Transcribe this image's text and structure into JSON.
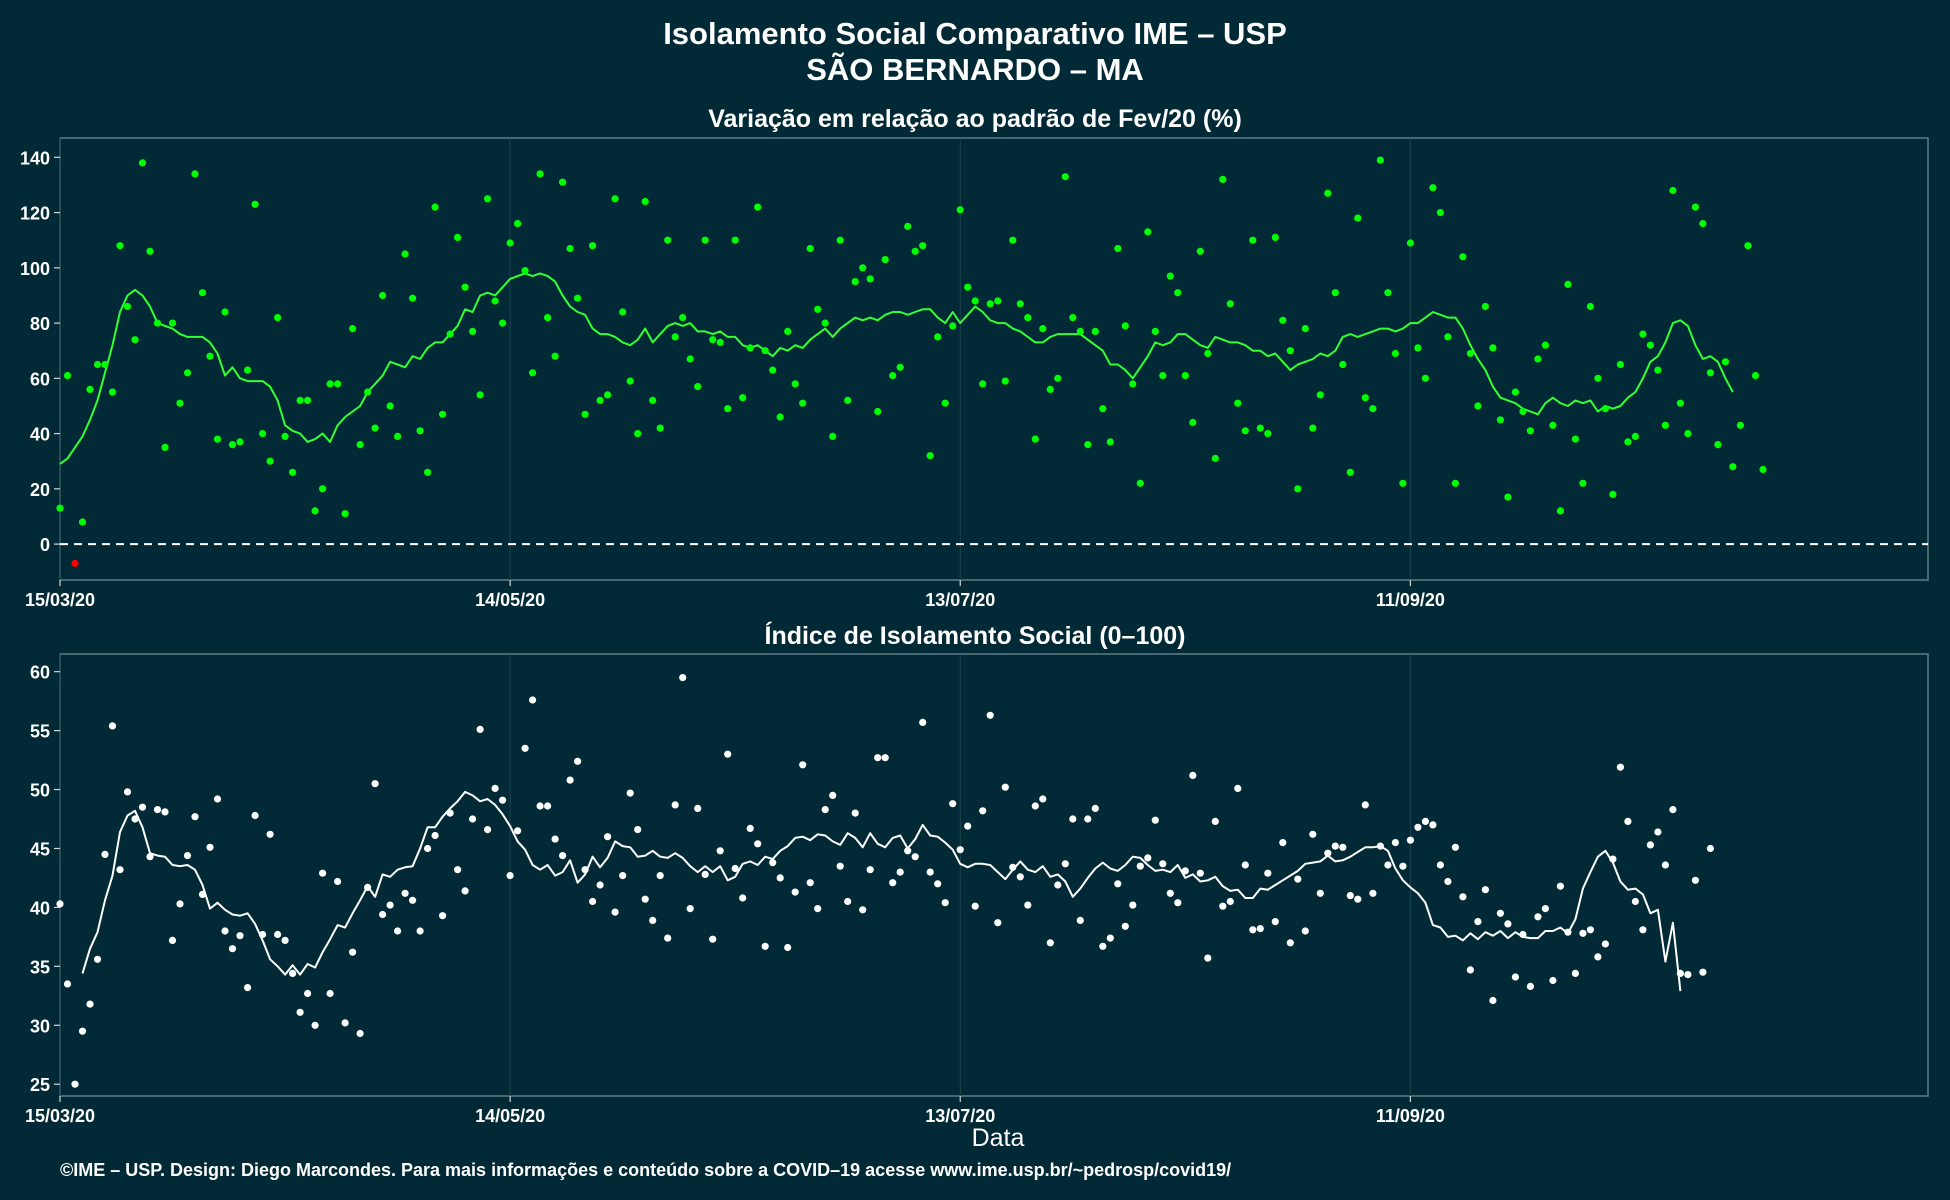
{
  "header": {
    "title_line1": "Isolamento Social Comparativo IME – USP",
    "title_line2": "SÃO BERNARDO – MA"
  },
  "footer": {
    "xlabel": "Data",
    "credit": "©IME – USP. Design: Diego Marcondes. Para mais informações e conteúdo sobre a COVID–19 acesse www.ime.usp.br/~pedrosp/covid19/"
  },
  "colors": {
    "background": "#022a36",
    "panel_border": "#5d7c84",
    "grid": "#1d4550",
    "variation_points": "#00ff00",
    "variation_negative": "#ff0000",
    "index_points": "#ffffff",
    "moving_average_variation": "#33ff33",
    "moving_average_index": "#ffffff",
    "zero_line": "#ffffff"
  },
  "chart_data": [
    {
      "type": "scatter",
      "title": "Variação em relação ao padrão de Fev/20 (%)",
      "x_start": "15/03/20",
      "x_ticks": [
        "15/03/20",
        "14/05/20",
        "13/07/20",
        "11/09/20"
      ],
      "ylim": [
        -13,
        147
      ],
      "yticks": [
        0,
        20,
        40,
        60,
        80,
        100,
        120,
        140
      ],
      "reference_line": 0,
      "grid": true,
      "series": [
        {
          "kind": "points",
          "values": [
            13,
            61,
            -7,
            8,
            56,
            65,
            65,
            55,
            108,
            86,
            74,
            138,
            106,
            80,
            35,
            80,
            51,
            62,
            134,
            91,
            68,
            38,
            84,
            36,
            37,
            63,
            123,
            40,
            30,
            82,
            39,
            26,
            52,
            52,
            12,
            20,
            58,
            58,
            11,
            78,
            36,
            55,
            42,
            90,
            50,
            39,
            105,
            89,
            41,
            26,
            122,
            47,
            76,
            111,
            93,
            77,
            54,
            125,
            88,
            80,
            109,
            116,
            99,
            62,
            134,
            82,
            68,
            131,
            107,
            89,
            47,
            108,
            52,
            54,
            125,
            84,
            59,
            40,
            124,
            52,
            42,
            110,
            75,
            82,
            67,
            57,
            110,
            74,
            73,
            49,
            110,
            53,
            71,
            122,
            70,
            63,
            46,
            77,
            58,
            51,
            107,
            85,
            80,
            39,
            110,
            52,
            95,
            100,
            96,
            48,
            103,
            61,
            64,
            115,
            106,
            108,
            32,
            75,
            51,
            79,
            121,
            93,
            88,
            58,
            87,
            88,
            59,
            110,
            87,
            82,
            38,
            78,
            56,
            60,
            133,
            82,
            77,
            36,
            77,
            49,
            37,
            107,
            79,
            58,
            22,
            113,
            77,
            61,
            97,
            91,
            61,
            44,
            106,
            69,
            31,
            132,
            87,
            51,
            41,
            110,
            42,
            40,
            111,
            81,
            70,
            20,
            78,
            42,
            54,
            127,
            91,
            65,
            26,
            118,
            53,
            49,
            139,
            91,
            69,
            22,
            109,
            71,
            60,
            129,
            120,
            75,
            22,
            104,
            69,
            50,
            86,
            71,
            45,
            17,
            55,
            48,
            41,
            67,
            72,
            43,
            12,
            94,
            38,
            22,
            86,
            60,
            49,
            18,
            65,
            37,
            39,
            76,
            72,
            63,
            43,
            128,
            51,
            40,
            122,
            116,
            62,
            36,
            66,
            28,
            43,
            108,
            61,
            27
          ]
        },
        {
          "kind": "line",
          "name": "",
          "start_index": 0,
          "values": [
            29,
            31,
            35,
            39,
            45,
            52,
            62,
            72,
            84,
            90,
            92,
            90,
            86,
            80,
            79,
            78,
            76,
            75,
            75,
            75,
            73,
            69,
            61,
            64,
            60,
            59,
            59,
            59,
            57,
            52,
            43,
            41,
            40,
            37,
            38,
            40,
            37,
            43,
            46,
            48,
            50,
            55,
            58,
            61,
            66,
            65,
            64,
            68,
            67,
            71,
            73,
            73,
            76,
            79,
            85,
            84,
            90,
            91,
            90,
            93,
            96,
            97,
            98,
            97,
            98,
            97,
            95,
            90,
            86,
            84,
            83,
            78,
            76,
            76,
            75,
            73,
            72,
            74,
            78,
            73,
            76,
            79,
            80,
            79,
            80,
            77,
            77,
            76,
            77,
            75,
            75,
            72,
            71,
            72,
            70,
            68,
            71,
            70,
            72,
            71,
            74,
            76,
            78,
            75,
            78,
            80,
            82,
            81,
            82,
            81,
            83,
            84,
            84,
            83,
            84,
            85,
            85,
            82,
            80,
            84,
            80,
            83,
            86,
            84,
            81,
            80,
            80,
            78,
            77,
            75,
            73,
            73,
            75,
            76,
            76,
            76,
            76,
            74,
            72,
            70,
            65,
            65,
            63,
            60,
            64,
            68,
            73,
            72,
            73,
            76,
            76,
            74,
            72,
            71,
            75,
            74,
            73,
            73,
            72,
            70,
            70,
            68,
            69,
            66,
            63,
            65,
            66,
            67,
            69,
            68,
            70,
            75,
            76,
            75,
            76,
            77,
            78,
            78,
            77,
            78,
            80,
            80,
            82,
            84,
            83,
            82,
            82,
            78,
            72,
            67,
            63,
            57,
            53,
            52,
            51,
            49,
            48,
            47,
            51,
            53,
            51,
            50,
            52,
            51,
            52,
            48,
            50,
            49,
            50,
            53,
            55,
            60,
            66,
            68,
            73,
            80,
            81,
            79,
            72,
            67,
            68,
            66,
            60,
            55
          ]
        },
        {
          "kind": "points_negative",
          "values": [
            -7
          ],
          "indices": [
            2
          ]
        }
      ]
    },
    {
      "type": "scatter",
      "title": "Índice de Isolamento Social (0–100)",
      "x_start": "15/03/20",
      "x_ticks": [
        "15/03/20",
        "14/05/20",
        "13/07/20",
        "11/09/20"
      ],
      "ylim": [
        24,
        61.5
      ],
      "yticks": [
        25,
        30,
        35,
        40,
        45,
        50,
        55,
        60
      ],
      "grid": true,
      "series": [
        {
          "kind": "points",
          "values": [
            40.3,
            33.5,
            25,
            29.5,
            31.8,
            35.6,
            44.5,
            55.4,
            43.2,
            49.8,
            47.5,
            48.5,
            44.3,
            48.3,
            48.1,
            37.2,
            40.3,
            44.4,
            47.7,
            41.1,
            45.1,
            49.2,
            38,
            36.5,
            37.6,
            33.2,
            47.8,
            37.7,
            46.2,
            37.7,
            37.2,
            34.4,
            31.1,
            32.7,
            30,
            42.9,
            32.7,
            42.2,
            30.2,
            36.2,
            29.3,
            41.7,
            50.5,
            39.4,
            40.2,
            38,
            41.2,
            40.6,
            38,
            45,
            46.1,
            39.3,
            48,
            43.2,
            41.4,
            47.5,
            55.1,
            46.6,
            50.1,
            49.1,
            42.7,
            46.5,
            53.5,
            57.6,
            48.6,
            48.6,
            45.8,
            44.4,
            50.8,
            52.4,
            43.2,
            40.5,
            41.9,
            46,
            39.6,
            42.7,
            49.7,
            46.6,
            40.7,
            38.9,
            42.7,
            37.4,
            48.7,
            59.5,
            39.9,
            48.4,
            42.8,
            37.3,
            44.8,
            53,
            43.3,
            40.8,
            46.7,
            45.4,
            36.7,
            43.8,
            42.5,
            36.6,
            41.3,
            52.1,
            42.1,
            39.9,
            48.3,
            49.5,
            43.5,
            40.5,
            48,
            39.8,
            43.2,
            52.7,
            52.7,
            42.1,
            43,
            44.8,
            44.3,
            55.7,
            43,
            42,
            40.4,
            48.8,
            44.9,
            46.9,
            40.1,
            48.2,
            56.3,
            38.7,
            50.2,
            43.4,
            42.6,
            40.2,
            48.6,
            49.2,
            37,
            41.9,
            43.7,
            47.5,
            38.9,
            47.5,
            48.4,
            36.7,
            37.4,
            42,
            38.4,
            40.2,
            43.5,
            44.2,
            47.4,
            43.7,
            41.2,
            40.4,
            43.1,
            51.2,
            42.9,
            35.7,
            47.3,
            40.1,
            40.5,
            50.1,
            43.6,
            38.1,
            38.2,
            42.9,
            38.8,
            45.5,
            37,
            42.4,
            38,
            46.2,
            41.2,
            44.6,
            45.2,
            45.1,
            41,
            40.7,
            48.7,
            41.2,
            45.2,
            43.6,
            45.5,
            43.5,
            45.7,
            46.8,
            47.3,
            47,
            43.6,
            42.2,
            45.1,
            40.9,
            34.7,
            38.8,
            41.5,
            32.1,
            39.5,
            38.6,
            34.1,
            37.7,
            33.3,
            39.2,
            39.9,
            33.8,
            41.8,
            37.9,
            34.4,
            37.8,
            38.1,
            35.8,
            36.9,
            44.1,
            51.9,
            47.3,
            40.5,
            38.1,
            45.3,
            46.4,
            43.6,
            48.3,
            34.4,
            34.3,
            42.3,
            34.5,
            45
          ]
        },
        {
          "kind": "line",
          "name": "",
          "start_index": 3,
          "values": [
            34.4,
            36.5,
            37.9,
            40.6,
            42.7,
            46.4,
            47.8,
            48.2,
            46.8,
            44.6,
            44.4,
            44.3,
            43.6,
            43.5,
            43.6,
            43.2,
            41.9,
            39.9,
            40.4,
            39.8,
            39.4,
            39.3,
            39.5,
            38.6,
            37.2,
            35.6,
            35,
            34.3,
            35.1,
            34.3,
            35.2,
            34.9,
            36.2,
            37.3,
            38.5,
            38.3,
            39.5,
            40.6,
            41.8,
            40.9,
            42.8,
            42.6,
            43.2,
            43.4,
            43.5,
            45,
            46.8,
            46.8,
            47.7,
            48.4,
            49,
            49.8,
            49.5,
            49,
            49.2,
            48.7,
            47.9,
            46.9,
            45.6,
            44.9,
            43.6,
            43.2,
            43.6,
            42.7,
            43,
            44,
            42.1,
            42.8,
            44.3,
            43.4,
            44.2,
            45.6,
            45.2,
            45.1,
            44.3,
            44.4,
            44.8,
            44.3,
            44.2,
            44.6,
            44.2,
            43.5,
            43,
            43.5,
            43,
            43.5,
            42.3,
            42.6,
            43.7,
            43.9,
            43.6,
            44.3,
            44.1,
            44.8,
            45.2,
            45.9,
            46,
            45.7,
            46.2,
            46.1,
            45.6,
            45.3,
            46.3,
            45.9,
            45.1,
            46.3,
            45.4,
            45.1,
            45.9,
            46.1,
            45,
            45.8,
            47,
            46.1,
            46,
            45.5,
            44.9,
            43.7,
            43.4,
            43.7,
            43.7,
            43.6,
            43,
            42.4,
            43.2,
            43.9,
            43.2,
            43,
            43.5,
            42.6,
            42.8,
            42.2,
            40.9,
            41.6,
            42.5,
            43.3,
            43.8,
            43.3,
            43.1,
            43.6,
            44.3,
            44.2,
            43.6,
            43.1,
            43.2,
            43,
            43.6,
            42.5,
            42.8,
            42.2,
            42.3,
            42.6,
            41.8,
            41.4,
            41.5,
            40.8,
            40.8,
            41.6,
            41.5,
            41.9,
            42.3,
            42.7,
            43.1,
            43.7,
            43.8,
            43.9,
            44.4,
            43.9,
            44,
            44.3,
            44.7,
            45.1,
            45.1,
            45.2,
            44.8,
            43.3,
            42.3,
            41.7,
            41.2,
            40.4,
            38.5,
            38.3,
            37.5,
            37.6,
            37.2,
            37.8,
            37.3,
            37.9,
            37.6,
            38,
            37.4,
            37.9,
            37.5,
            37.4,
            37.4,
            38,
            38,
            38.3,
            37.8,
            39,
            41.6,
            43,
            44.3,
            44.8,
            43.8,
            42.2,
            41.5,
            41.6,
            41.1,
            39.5,
            39.8,
            35.4,
            38.7,
            32.9
          ]
        }
      ]
    }
  ]
}
